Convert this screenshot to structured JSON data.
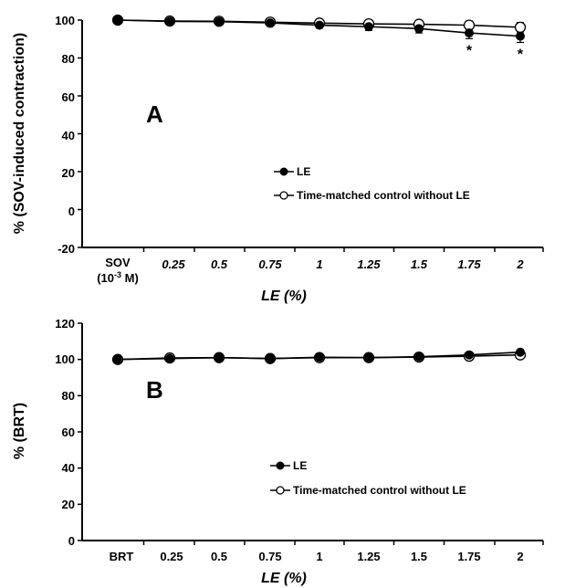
{
  "chart_data": [
    {
      "type": "line",
      "panel_label": "A",
      "ylabel": "% (SOV-induced contraction)",
      "xlabel": "LE (%)",
      "ylim": [
        -20,
        100
      ],
      "yticks": [
        "100",
        "80",
        "60",
        "40",
        "20",
        "0",
        "-20"
      ],
      "categories": [
        "SOV",
        "0.25",
        "0.5",
        "0.75",
        "1",
        "1.25",
        "1.5",
        "1.75",
        "2"
      ],
      "first_category_sub": "(10-3 M)",
      "first_category_sub_parts": [
        "(10",
        "-3",
        " M)"
      ],
      "series": [
        {
          "name": "LE",
          "marker": "filled",
          "values": [
            100,
            99.3,
            99.2,
            98.5,
            97.3,
            96.5,
            95.5,
            93.2,
            91.5
          ],
          "errors": [
            0.5,
            0.6,
            0.6,
            0.8,
            1.5,
            2.0,
            2.3,
            3.0,
            3.3
          ]
        },
        {
          "name": "Time-matched control without LE",
          "marker": "open",
          "values": [
            100,
            99.5,
            99.4,
            98.9,
            98.4,
            98.0,
            97.8,
            97.3,
            96.2
          ],
          "errors": [
            0.5,
            0.5,
            0.5,
            0.8,
            1.0,
            1.5,
            1.8,
            2.2,
            2.5
          ]
        }
      ],
      "significance": [
        {
          "category": "1.75",
          "label": "*"
        },
        {
          "category": "2",
          "label": "*"
        }
      ],
      "legend_position": "center-right"
    },
    {
      "type": "line",
      "panel_label": "B",
      "ylabel": "% (BRT)",
      "xlabel": "LE (%)",
      "ylim": [
        0,
        120
      ],
      "yticks": [
        "120",
        "100",
        "80",
        "60",
        "40",
        "20",
        "0"
      ],
      "categories": [
        "BRT",
        "0.25",
        "0.5",
        "0.75",
        "1",
        "1.25",
        "1.5",
        "1.75",
        "2"
      ],
      "series": [
        {
          "name": "LE",
          "marker": "filled",
          "values": [
            100,
            100.5,
            101,
            100.5,
            101.2,
            101,
            101.5,
            102.5,
            104
          ]
        },
        {
          "name": "Time-matched control without LE",
          "marker": "open",
          "values": [
            100,
            100.8,
            101,
            100.5,
            101,
            101,
            101.3,
            101.8,
            102.5
          ]
        }
      ],
      "legend_position": "center-right"
    }
  ]
}
